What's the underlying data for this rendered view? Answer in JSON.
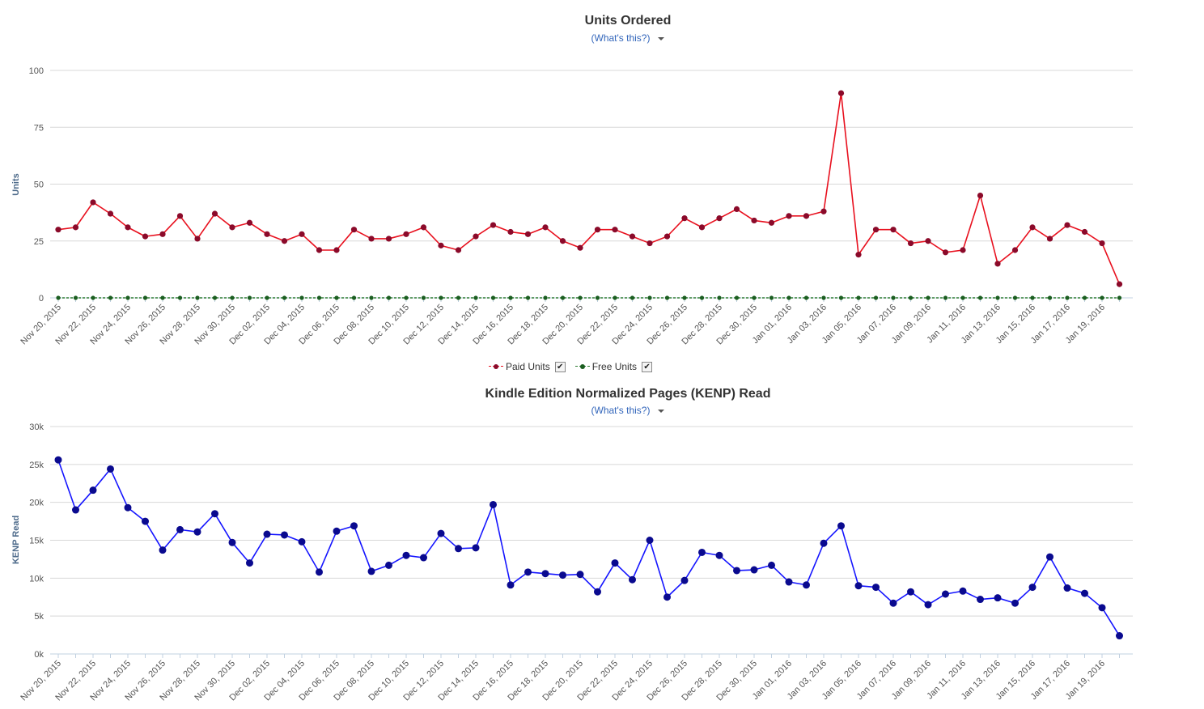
{
  "chart_data": [
    {
      "type": "line",
      "title": "Units Ordered",
      "help_link": "(What's this?)",
      "xlabel": "",
      "ylabel": "Units",
      "ylim": [
        0,
        100
      ],
      "yticks": [
        0,
        25,
        50,
        75,
        100
      ],
      "ytick_labels": [
        "0",
        "25",
        "50",
        "75",
        "100"
      ],
      "categories": [
        "Nov 20, 2015",
        "Nov 21, 2015",
        "Nov 22, 2015",
        "Nov 23, 2015",
        "Nov 24, 2015",
        "Nov 25, 2015",
        "Nov 26, 2015",
        "Nov 27, 2015",
        "Nov 28, 2015",
        "Nov 29, 2015",
        "Nov 30, 2015",
        "Dec 01, 2015",
        "Dec 02, 2015",
        "Dec 03, 2015",
        "Dec 04, 2015",
        "Dec 05, 2015",
        "Dec 06, 2015",
        "Dec 07, 2015",
        "Dec 08, 2015",
        "Dec 09, 2015",
        "Dec 10, 2015",
        "Dec 11, 2015",
        "Dec 12, 2015",
        "Dec 13, 2015",
        "Dec 14, 2015",
        "Dec 15, 2015",
        "Dec 16, 2015",
        "Dec 17, 2015",
        "Dec 18, 2015",
        "Dec 19, 2015",
        "Dec 20, 2015",
        "Dec 21, 2015",
        "Dec 22, 2015",
        "Dec 23, 2015",
        "Dec 24, 2015",
        "Dec 25, 2015",
        "Dec 26, 2015",
        "Dec 27, 2015",
        "Dec 28, 2015",
        "Dec 29, 2015",
        "Dec 30, 2015",
        "Dec 31, 2015",
        "Jan 01, 2016",
        "Jan 02, 2016",
        "Jan 03, 2016",
        "Jan 04, 2016",
        "Jan 05, 2016",
        "Jan 06, 2016",
        "Jan 07, 2016",
        "Jan 08, 2016",
        "Jan 09, 2016",
        "Jan 10, 2016",
        "Jan 11, 2016",
        "Jan 12, 2016",
        "Jan 13, 2016",
        "Jan 14, 2016",
        "Jan 15, 2016",
        "Jan 16, 2016",
        "Jan 17, 2016",
        "Jan 18, 2016",
        "Jan 19, 2016",
        "Jan 20, 2016"
      ],
      "xtick_labels": [
        "Nov 20, 2015",
        "Nov 22, 2015",
        "Nov 24, 2015",
        "Nov 26, 2015",
        "Nov 28, 2015",
        "Nov 30, 2015",
        "Dec 02, 2015",
        "Dec 04, 2015",
        "Dec 06, 2015",
        "Dec 08, 2015",
        "Dec 10, 2015",
        "Dec 12, 2015",
        "Dec 14, 2015",
        "Dec 16, 2015",
        "Dec 18, 2015",
        "Dec 20, 2015",
        "Dec 22, 2015",
        "Dec 24, 2015",
        "Dec 26, 2015",
        "Dec 28, 2015",
        "Dec 30, 2015",
        "Jan 01, 2016",
        "Jan 03, 2016",
        "Jan 05, 2016",
        "Jan 07, 2016",
        "Jan 09, 2016",
        "Jan 11, 2016",
        "Jan 13, 2016",
        "Jan 15, 2016",
        "Jan 17, 2016",
        "Jan 19, 2016"
      ],
      "series": [
        {
          "name": "Paid Units",
          "line_color": "#e8101e",
          "marker_color": "#8b0a2a",
          "checked": true,
          "values": [
            30,
            31,
            42,
            37,
            31,
            27,
            28,
            36,
            26,
            37,
            31,
            33,
            28,
            25,
            28,
            21,
            21,
            30,
            26,
            26,
            28,
            31,
            23,
            21,
            27,
            32,
            29,
            28,
            31,
            25,
            22,
            30,
            30,
            27,
            24,
            27,
            35,
            31,
            35,
            39,
            34,
            33,
            36,
            36,
            38,
            90,
            19,
            30,
            30,
            24,
            25,
            20,
            21,
            45,
            15,
            21,
            31,
            26,
            32,
            29,
            24,
            6
          ]
        },
        {
          "name": "Free Units",
          "line_color": "#2e7d32",
          "marker_color": "#1b5e20",
          "checked": true,
          "values": [
            0,
            0,
            0,
            0,
            0,
            0,
            0,
            0,
            0,
            0,
            0,
            0,
            0,
            0,
            0,
            0,
            0,
            0,
            0,
            0,
            0,
            0,
            0,
            0,
            0,
            0,
            0,
            0,
            0,
            0,
            0,
            0,
            0,
            0,
            0,
            0,
            0,
            0,
            0,
            0,
            0,
            0,
            0,
            0,
            0,
            0,
            0,
            0,
            0,
            0,
            0,
            0,
            0,
            0,
            0,
            0,
            0,
            0,
            0,
            0,
            0,
            0
          ]
        }
      ],
      "legend": "bottom-center"
    },
    {
      "type": "line",
      "title": "Kindle Edition Normalized Pages (KENP) Read",
      "help_link": "(What's this?)",
      "xlabel": "",
      "ylabel": "KENP Read",
      "ylim": [
        0,
        30000
      ],
      "yticks": [
        0,
        5000,
        10000,
        15000,
        20000,
        25000,
        30000
      ],
      "ytick_labels": [
        "0k",
        "5k",
        "10k",
        "15k",
        "20k",
        "25k",
        "30k"
      ],
      "categories": "same_as_units",
      "xtick_labels": [
        "Nov 20, 2015",
        "Nov 22, 2015",
        "Nov 24, 2015",
        "Nov 26, 2015",
        "Nov 28, 2015",
        "Nov 30, 2015",
        "Dec 02, 2015",
        "Dec 04, 2015",
        "Dec 06, 2015",
        "Dec 08, 2015",
        "Dec 10, 2015",
        "Dec 12, 2015",
        "Dec 14, 2015",
        "Dec 16, 2015",
        "Dec 18, 2015",
        "Dec 20, 2015",
        "Dec 22, 2015",
        "Dec 24, 2015",
        "Dec 26, 2015",
        "Dec 28, 2015",
        "Dec 30, 2015",
        "Jan 01, 2016",
        "Jan 03, 2016",
        "Jan 05, 2016",
        "Jan 07, 2016",
        "Jan 09, 2016",
        "Jan 11, 2016",
        "Jan 13, 2016",
        "Jan 15, 2016",
        "Jan 17, 2016",
        "Jan 19, 2016"
      ],
      "series": [
        {
          "name": "KENP Read",
          "line_color": "#1515ff",
          "marker_color": "#0a0a8f",
          "values": [
            25600,
            19000,
            21600,
            24400,
            19300,
            17500,
            13700,
            16400,
            16100,
            18500,
            14700,
            12000,
            15800,
            15700,
            14800,
            10800,
            16200,
            16900,
            10900,
            11700,
            13000,
            12700,
            15900,
            13900,
            14000,
            19700,
            9100,
            10800,
            10600,
            10400,
            10500,
            8200,
            12000,
            9800,
            15000,
            7500,
            9700,
            13400,
            13000,
            11000,
            11100,
            11700,
            9500,
            9100,
            14600,
            16900,
            9000,
            8800,
            6700,
            8200,
            6500,
            7900,
            8300,
            7200,
            7400,
            6700,
            8800,
            12800,
            8700,
            8000,
            6100,
            2400
          ]
        }
      ]
    }
  ]
}
